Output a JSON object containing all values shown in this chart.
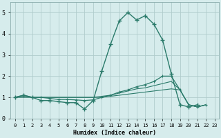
{
  "xlabel": "Humidex (Indice chaleur)",
  "xlim": [
    -0.5,
    23.5
  ],
  "ylim": [
    0,
    5.5
  ],
  "xticks": [
    0,
    1,
    2,
    3,
    4,
    5,
    6,
    7,
    8,
    9,
    10,
    11,
    12,
    13,
    14,
    15,
    16,
    17,
    18,
    19,
    20,
    21,
    22,
    23
  ],
  "yticks": [
    0,
    1,
    2,
    3,
    4,
    5
  ],
  "bg_color": "#d6ecec",
  "grid_color": "#b0cccc",
  "line_color": "#2a7a6a",
  "line1_x": [
    0,
    1,
    2,
    3,
    4,
    5,
    6,
    7,
    8,
    9,
    10,
    11,
    12,
    13,
    14,
    15,
    16,
    17,
    18,
    19,
    20,
    21
  ],
  "line1_y": [
    1.0,
    1.1,
    1.0,
    0.85,
    0.85,
    0.8,
    0.75,
    0.75,
    0.45,
    0.85,
    2.25,
    3.5,
    4.6,
    5.0,
    4.65,
    4.85,
    4.45,
    3.7,
    2.1,
    0.65,
    0.55,
    0.65
  ],
  "line2_x": [
    0,
    1,
    2,
    3,
    4,
    5,
    6,
    7,
    8,
    9,
    10,
    11,
    12,
    13,
    14,
    15,
    16,
    17,
    18,
    19,
    20,
    21,
    22
  ],
  "line2_y": [
    1.0,
    1.1,
    1.0,
    1.0,
    0.95,
    0.9,
    0.9,
    0.88,
    0.85,
    0.88,
    1.0,
    1.1,
    1.25,
    1.35,
    1.5,
    1.6,
    1.75,
    2.0,
    2.0,
    1.35,
    0.65,
    0.55,
    0.65
  ],
  "line3_x": [
    0,
    1,
    2,
    3,
    4,
    5,
    6,
    7,
    8,
    9,
    10,
    11,
    12,
    13,
    14,
    15,
    16,
    17,
    18,
    19,
    20,
    21,
    22
  ],
  "line3_y": [
    1.0,
    1.05,
    1.0,
    1.0,
    1.0,
    1.0,
    1.0,
    1.0,
    1.0,
    1.0,
    1.05,
    1.1,
    1.2,
    1.3,
    1.4,
    1.45,
    1.55,
    1.65,
    1.75,
    1.35,
    0.65,
    0.55,
    0.65
  ],
  "line4_x": [
    0,
    1,
    2,
    3,
    4,
    5,
    6,
    7,
    8,
    9,
    10,
    11,
    12,
    13,
    14,
    15,
    16,
    17,
    18,
    19,
    20,
    21,
    22
  ],
  "line4_y": [
    1.0,
    1.0,
    1.0,
    1.0,
    1.0,
    1.0,
    1.0,
    1.0,
    1.0,
    1.0,
    1.0,
    1.05,
    1.1,
    1.15,
    1.2,
    1.25,
    1.3,
    1.35,
    1.4,
    1.35,
    0.65,
    0.55,
    0.65
  ]
}
